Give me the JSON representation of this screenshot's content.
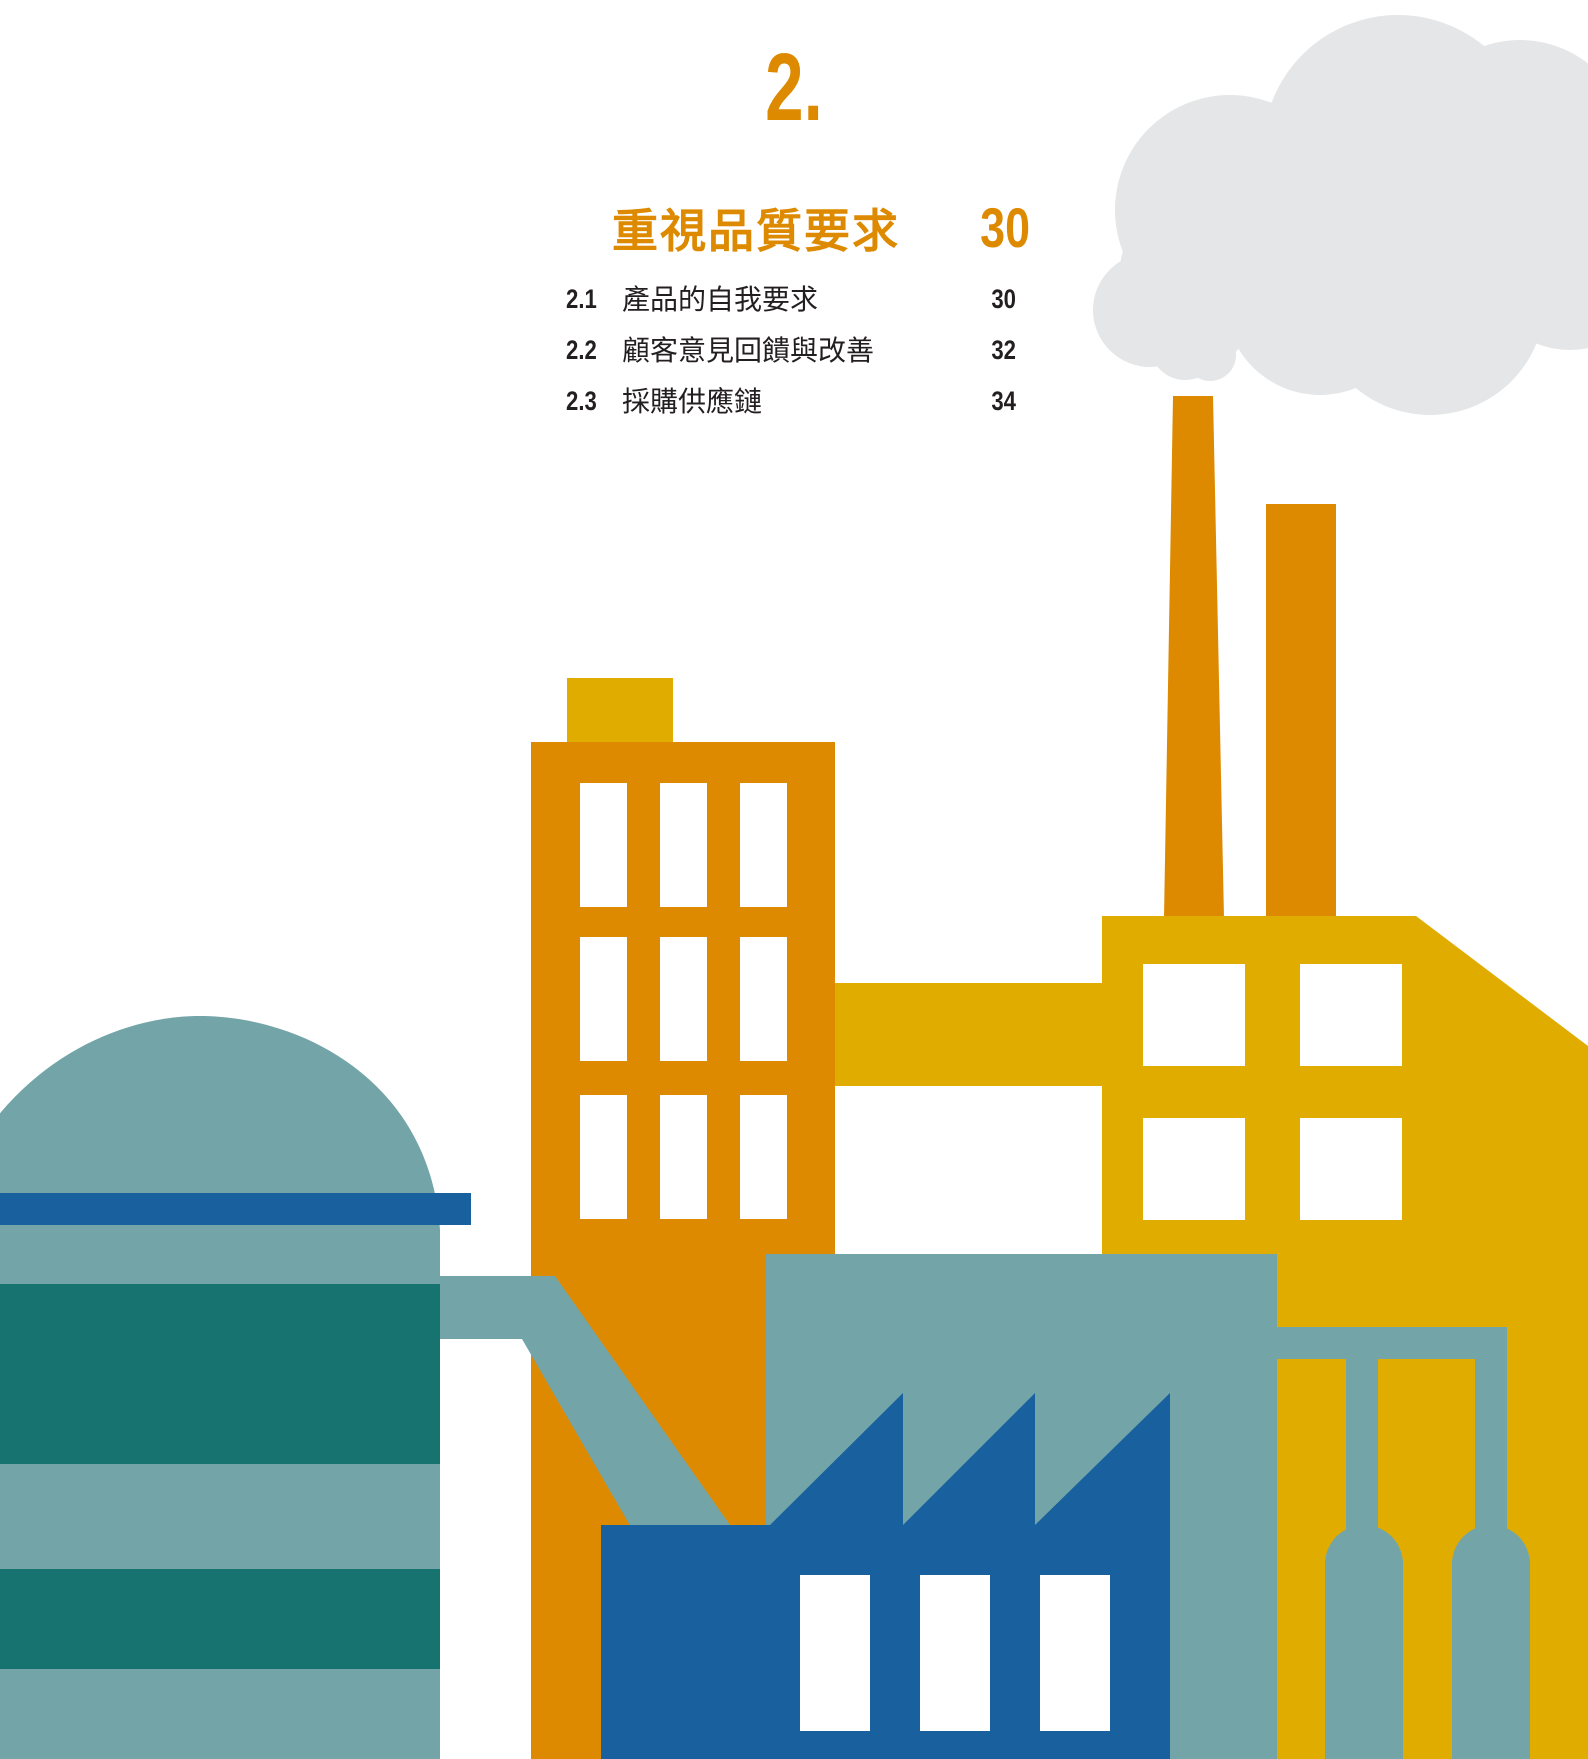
{
  "chapter": {
    "number": "2.",
    "title": "重視品質要求",
    "page": "30"
  },
  "toc": [
    {
      "number": "2.1",
      "label": "產品的自我要求",
      "page": "30"
    },
    {
      "number": "2.2",
      "label": "顧客意見回饋與改善",
      "page": "32"
    },
    {
      "number": "2.3",
      "label": "採購供應鏈",
      "page": "34"
    }
  ],
  "colors": {
    "accent": "#DD8A00",
    "yellow": "#E1AC00",
    "teal_light": "#73A5A8",
    "teal_dark": "#167370",
    "blue": "#19619E",
    "cloud": "#E5E6E8",
    "text": "#231F20"
  }
}
